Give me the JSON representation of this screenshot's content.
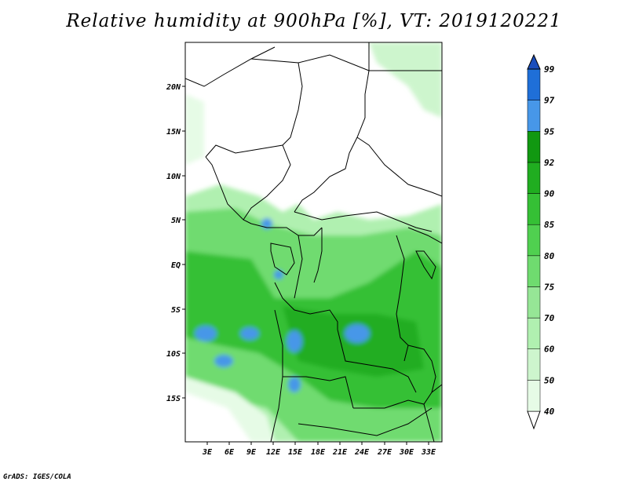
{
  "title": "Relative humidity at 900hPa [%], VT: 2019120221",
  "footer": "GrADS: IGES/COLA",
  "lat_labels": [
    "20N",
    "15N",
    "10N",
    "5N",
    "EQ",
    "5S",
    "10S",
    "15S"
  ],
  "lon_labels": [
    "3E",
    "6E",
    "9E",
    "12E",
    "15E",
    "18E",
    "21E",
    "24E",
    "27E",
    "30E",
    "33E"
  ],
  "colorbar": {
    "levels": [
      "40",
      "50",
      "60",
      "70",
      "75",
      "80",
      "85",
      "90",
      "92",
      "95",
      "97",
      "99"
    ],
    "colors": [
      "#ffffff",
      "#e6fbe6",
      "#cdf5cd",
      "#b0f0b0",
      "#96e696",
      "#6fdb6f",
      "#50d050",
      "#35c035",
      "#20ad20",
      "#119811",
      "#4797e8",
      "#1f6fd8",
      "#1a4ebd"
    ]
  },
  "legend_note": "colorbar shows RH classes; white fill below 40%"
}
